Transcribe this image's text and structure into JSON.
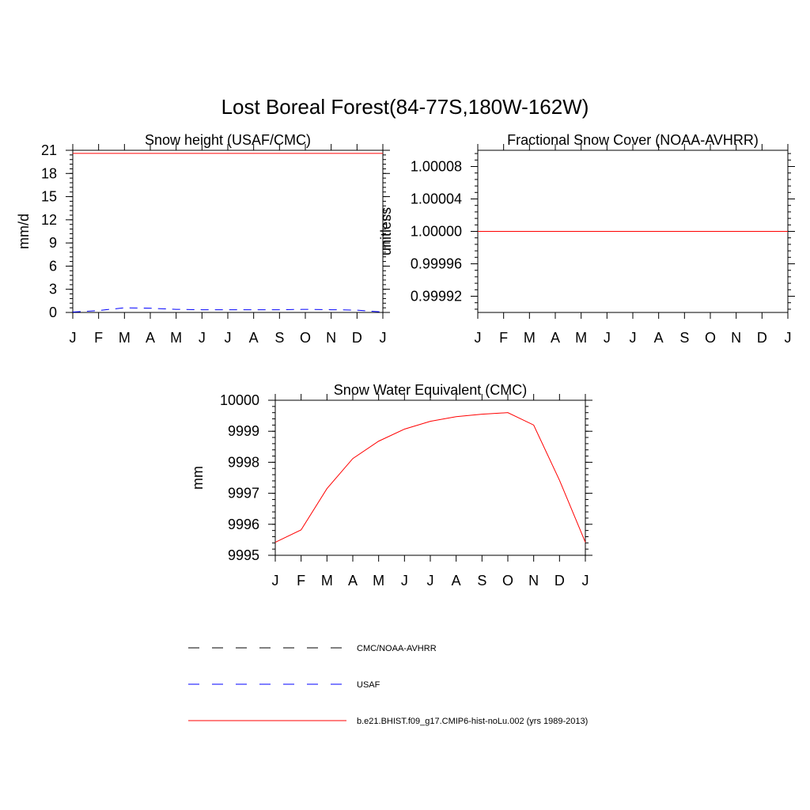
{
  "title": "Lost Boreal Forest(84-77S,180W-162W)",
  "month_labels": [
    "J",
    "F",
    "M",
    "A",
    "M",
    "J",
    "J",
    "A",
    "S",
    "O",
    "N",
    "D",
    "J"
  ],
  "colors": {
    "model": "#ff0000",
    "usaf": "#0000ff",
    "obs": "#000000"
  },
  "legend": [
    {
      "label": "CMC/NOAA-AVHRR",
      "color": "#000000",
      "style": "dashed"
    },
    {
      "label": "USAF",
      "color": "#0000ff",
      "style": "dashed"
    },
    {
      "label": "b.e21.BHIST.f09_g17.CMIP6-hist-noLu.002 (yrs 1989-2013)",
      "color": "#ff0000",
      "style": "solid"
    }
  ],
  "chart_data": [
    {
      "type": "line",
      "title": "Snow height (USAF/CMC)",
      "ylabel": "mm/d",
      "xlabel": "",
      "x": [
        1,
        2,
        3,
        4,
        5,
        6,
        7,
        8,
        9,
        10,
        11,
        12,
        13
      ],
      "ylim": [
        0,
        21
      ],
      "yticks": [
        0,
        3,
        6,
        9,
        12,
        15,
        18,
        21
      ],
      "ytick_labels": [
        "0",
        "3",
        "6",
        "9",
        "12",
        "15",
        "18",
        "21"
      ],
      "grid": false,
      "series": [
        {
          "key": "model",
          "values": [
            20.6,
            20.6,
            20.6,
            20.6,
            20.6,
            20.6,
            20.6,
            20.6,
            20.6,
            20.6,
            20.6,
            20.6,
            20.6
          ],
          "color": "#ff0000",
          "dash": "solid"
        },
        {
          "key": "usaf",
          "values": [
            0.05,
            0.25,
            0.6,
            0.55,
            0.4,
            0.35,
            0.35,
            0.35,
            0.35,
            0.4,
            0.35,
            0.3,
            0.05
          ],
          "color": "#0000ff",
          "dash": "dashed"
        }
      ]
    },
    {
      "type": "line",
      "title": "Fractional Snow Cover (NOAA-AVHRR)",
      "ylabel": "unitless",
      "xlabel": "",
      "x": [
        1,
        2,
        3,
        4,
        5,
        6,
        7,
        8,
        9,
        10,
        11,
        12,
        13
      ],
      "ylim": [
        0.9999,
        1.0001
      ],
      "yticks": [
        0.99992,
        0.99996,
        1.0,
        1.00004,
        1.00008
      ],
      "ytick_labels": [
        "0.99992",
        "0.99996",
        "1.00000",
        "1.00004",
        "1.00008"
      ],
      "grid": false,
      "series": [
        {
          "key": "model",
          "values": [
            1,
            1,
            1,
            1,
            1,
            1,
            1,
            1,
            1,
            1,
            1,
            1,
            1
          ],
          "color": "#ff0000",
          "dash": "solid"
        }
      ]
    },
    {
      "type": "line",
      "title": "Snow Water Equivalent (CMC)",
      "ylabel": "mm",
      "xlabel": "",
      "x": [
        1,
        2,
        3,
        4,
        5,
        6,
        7,
        8,
        9,
        10,
        11,
        12,
        13
      ],
      "ylim": [
        9995,
        10000
      ],
      "yticks": [
        9995,
        9996,
        9997,
        9998,
        9999,
        10000
      ],
      "ytick_labels": [
        "9995",
        "9996",
        "9997",
        "9998",
        "9999",
        "10000"
      ],
      "grid": false,
      "series": [
        {
          "key": "model",
          "values": [
            9995.42,
            9995.82,
            9997.15,
            9998.12,
            9998.68,
            9999.07,
            9999.32,
            9999.47,
            9999.55,
            9999.6,
            9999.2,
            9997.42,
            9995.42
          ],
          "color": "#ff0000",
          "dash": "solid"
        }
      ]
    }
  ]
}
